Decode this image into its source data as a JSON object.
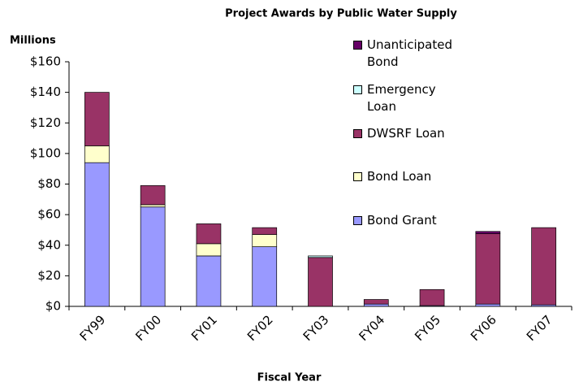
{
  "chart_data": {
    "type": "stacked_bar",
    "title": "Project Awards by Public Water Supply",
    "y_label": "Millions",
    "x_label": "Fiscal Year",
    "categories": [
      "FY99",
      "FY00",
      "FY01",
      "FY02",
      "FY03",
      "FY04",
      "FY05",
      "FY06",
      "FY07"
    ],
    "series": [
      {
        "name": "Bond Grant",
        "color": "#9999ff",
        "values": [
          94,
          65,
          33,
          39,
          0,
          1.5,
          0.5,
          1.5,
          1
        ]
      },
      {
        "name": "Bond Loan",
        "color": "#ffffcc",
        "values": [
          11,
          1.5,
          8,
          8,
          0,
          0,
          0,
          0,
          0
        ]
      },
      {
        "name": "DWSRF Loan",
        "color": "#993366",
        "values": [
          35,
          12.5,
          13,
          4.5,
          32,
          3,
          10.5,
          46,
          50.5
        ]
      },
      {
        "name": "Emergency Loan",
        "color": "#ccffff",
        "values": [
          0,
          0,
          0,
          0,
          1,
          0,
          0,
          0,
          0
        ]
      },
      {
        "name": "Unanticipated Bond",
        "color": "#660066",
        "values": [
          0,
          0,
          0,
          0,
          0,
          0,
          0,
          1.5,
          0
        ]
      }
    ],
    "ylim": [
      0,
      160
    ],
    "yticks": [
      {
        "value": 0,
        "label": "$0"
      },
      {
        "value": 20,
        "label": "$20"
      },
      {
        "value": 40,
        "label": "$40"
      },
      {
        "value": 60,
        "label": "$60"
      },
      {
        "value": 80,
        "label": "$80"
      },
      {
        "value": 100,
        "label": "$100"
      },
      {
        "value": 120,
        "label": "$120"
      },
      {
        "value": 140,
        "label": "$140"
      },
      {
        "value": 160,
        "label": "$160"
      }
    ],
    "grid": false,
    "legend": "right"
  }
}
